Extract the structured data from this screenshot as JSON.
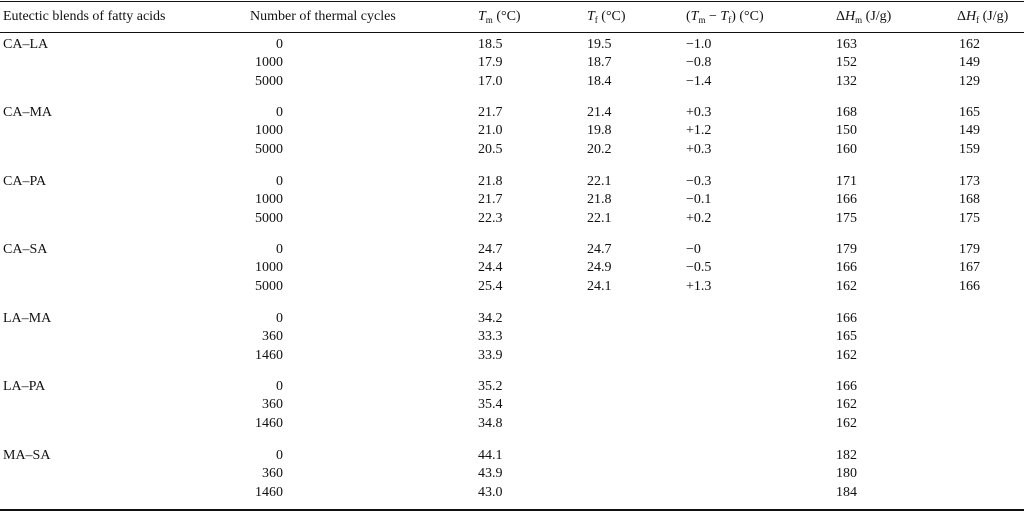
{
  "table": {
    "headers": {
      "blend": "Eutectic blends of fatty acids",
      "cycles": "Number of thermal cycles",
      "tm_sym": "T",
      "tm_sub": "m",
      "tm_unit": " (°C)",
      "tf_sym": "T",
      "tf_sub": "f",
      "tf_unit": " (°C)",
      "diff_open": "(",
      "diff_sym1": "T",
      "diff_sub1": "m",
      "diff_minus": " − ",
      "diff_sym2": "T",
      "diff_sub2": "f",
      "diff_close": ") (°C)",
      "hm_delta": "Δ",
      "hm_sym": "H",
      "hm_sub": "m",
      "hm_unit": " (J/g)",
      "hf_delta": "Δ",
      "hf_sym": "H",
      "hf_sub": "f",
      "hf_unit": " (J/g)"
    },
    "groups": [
      {
        "name": "CA–LA",
        "rows": [
          {
            "cycles": "0",
            "tm": "18.5",
            "tf": "19.5",
            "diff": "−1.0",
            "hm": "163",
            "hf": "162"
          },
          {
            "cycles": "1000",
            "tm": "17.9",
            "tf": "18.7",
            "diff": "−0.8",
            "hm": "152",
            "hf": "149"
          },
          {
            "cycles": "5000",
            "tm": "17.0",
            "tf": "18.4",
            "diff": "−1.4",
            "hm": "132",
            "hf": "129"
          }
        ]
      },
      {
        "name": "CA–MA",
        "rows": [
          {
            "cycles": "0",
            "tm": "21.7",
            "tf": "21.4",
            "diff": "+0.3",
            "hm": "168",
            "hf": "165"
          },
          {
            "cycles": "1000",
            "tm": "21.0",
            "tf": "19.8",
            "diff": "+1.2",
            "hm": "150",
            "hf": "149"
          },
          {
            "cycles": "5000",
            "tm": "20.5",
            "tf": "20.2",
            "diff": "+0.3",
            "hm": "160",
            "hf": "159"
          }
        ]
      },
      {
        "name": "CA–PA",
        "rows": [
          {
            "cycles": "0",
            "tm": "21.8",
            "tf": "22.1",
            "diff": "−0.3",
            "hm": "171",
            "hf": "173"
          },
          {
            "cycles": "1000",
            "tm": "21.7",
            "tf": "21.8",
            "diff": "−0.1",
            "hm": "166",
            "hf": "168"
          },
          {
            "cycles": "5000",
            "tm": "22.3",
            "tf": "22.1",
            "diff": "+0.2",
            "hm": "175",
            "hf": "175"
          }
        ]
      },
      {
        "name": "CA–SA",
        "rows": [
          {
            "cycles": "0",
            "tm": "24.7",
            "tf": "24.7",
            "diff": "−0",
            "hm": "179",
            "hf": "179"
          },
          {
            "cycles": "1000",
            "tm": "24.4",
            "tf": "24.9",
            "diff": "−0.5",
            "hm": "166",
            "hf": "167"
          },
          {
            "cycles": "5000",
            "tm": "25.4",
            "tf": "24.1",
            "diff": "+1.3",
            "hm": "162",
            "hf": "166"
          }
        ]
      },
      {
        "name": "LA–MA",
        "rows": [
          {
            "cycles": "0",
            "tm": "34.2",
            "tf": "",
            "diff": "",
            "hm": "166",
            "hf": ""
          },
          {
            "cycles": "360",
            "tm": "33.3",
            "tf": "",
            "diff": "",
            "hm": "165",
            "hf": ""
          },
          {
            "cycles": "1460",
            "tm": "33.9",
            "tf": "",
            "diff": "",
            "hm": "162",
            "hf": ""
          }
        ]
      },
      {
        "name": "LA–PA",
        "rows": [
          {
            "cycles": "0",
            "tm": "35.2",
            "tf": "",
            "diff": "",
            "hm": "166",
            "hf": ""
          },
          {
            "cycles": "360",
            "tm": "35.4",
            "tf": "",
            "diff": "",
            "hm": "162",
            "hf": ""
          },
          {
            "cycles": "1460",
            "tm": "34.8",
            "tf": "",
            "diff": "",
            "hm": "162",
            "hf": ""
          }
        ]
      },
      {
        "name": "MA–SA",
        "rows": [
          {
            "cycles": "0",
            "tm": "44.1",
            "tf": "",
            "diff": "",
            "hm": "182",
            "hf": ""
          },
          {
            "cycles": "360",
            "tm": "43.9",
            "tf": "",
            "diff": "",
            "hm": "180",
            "hf": ""
          },
          {
            "cycles": "1460",
            "tm": "43.0",
            "tf": "",
            "diff": "",
            "hm": "184",
            "hf": ""
          }
        ]
      }
    ]
  }
}
